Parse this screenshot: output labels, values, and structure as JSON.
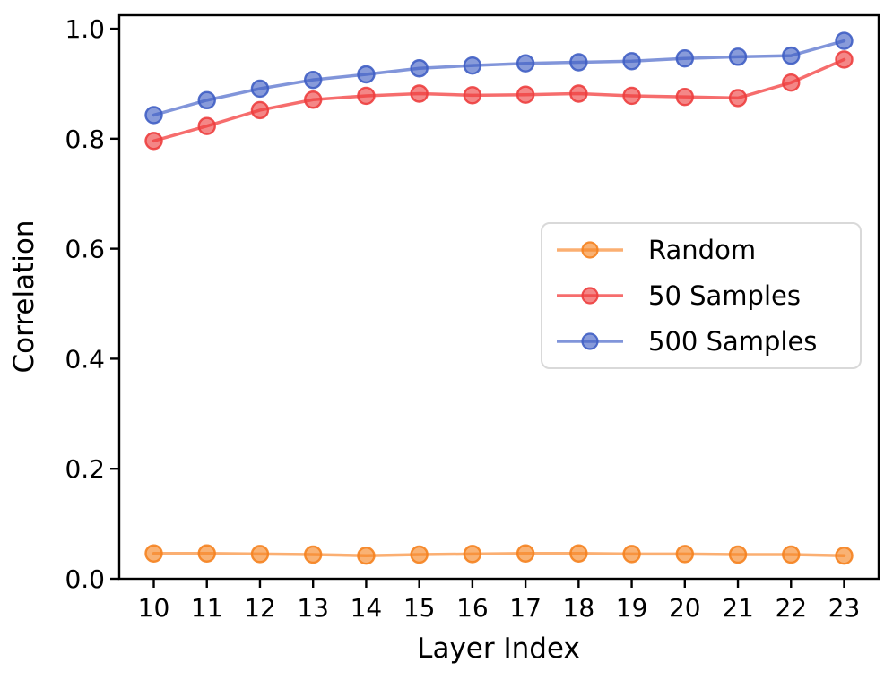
{
  "figure": {
    "background": "#ffffff",
    "text_color": "#000000",
    "spine_color": "#000000"
  },
  "chart_data": {
    "type": "line",
    "title": "",
    "xlabel": "Layer Index",
    "ylabel": "Correlation",
    "x": [
      10,
      11,
      12,
      13,
      14,
      15,
      16,
      17,
      18,
      19,
      20,
      21,
      22,
      23
    ],
    "xticks": [
      "10",
      "11",
      "12",
      "13",
      "14",
      "15",
      "16",
      "17",
      "18",
      "19",
      "20",
      "21",
      "22",
      "23"
    ],
    "yticks": [
      "0.0",
      "0.2",
      "0.4",
      "0.6",
      "0.8",
      "1.0"
    ],
    "ytick_values": [
      0.0,
      0.2,
      0.4,
      0.6,
      0.8,
      1.0
    ],
    "xlim": [
      9.35,
      23.65
    ],
    "ylim": [
      0.0,
      1.0245
    ],
    "grid": false,
    "legend": {
      "position": "center right",
      "entries": [
        "Random",
        "50 Samples",
        "500 Samples"
      ]
    },
    "series": [
      {
        "name": "Random",
        "line_color": "#fbaf72",
        "edge_color": "#f5821f",
        "values": [
          0.046,
          0.046,
          0.045,
          0.044,
          0.042,
          0.044,
          0.045,
          0.046,
          0.046,
          0.045,
          0.045,
          0.044,
          0.044,
          0.042
        ]
      },
      {
        "name": "50 Samples",
        "line_color": "#f66d6d",
        "edge_color": "#ed3e3e",
        "values": [
          0.796,
          0.823,
          0.852,
          0.871,
          0.878,
          0.882,
          0.879,
          0.88,
          0.882,
          0.878,
          0.876,
          0.874,
          0.902,
          0.944
        ]
      },
      {
        "name": "500 Samples",
        "line_color": "#8195da",
        "edge_color": "#3f5ec4",
        "values": [
          0.843,
          0.87,
          0.891,
          0.907,
          0.917,
          0.928,
          0.933,
          0.937,
          0.939,
          0.941,
          0.946,
          0.949,
          0.951,
          0.978
        ]
      }
    ]
  }
}
